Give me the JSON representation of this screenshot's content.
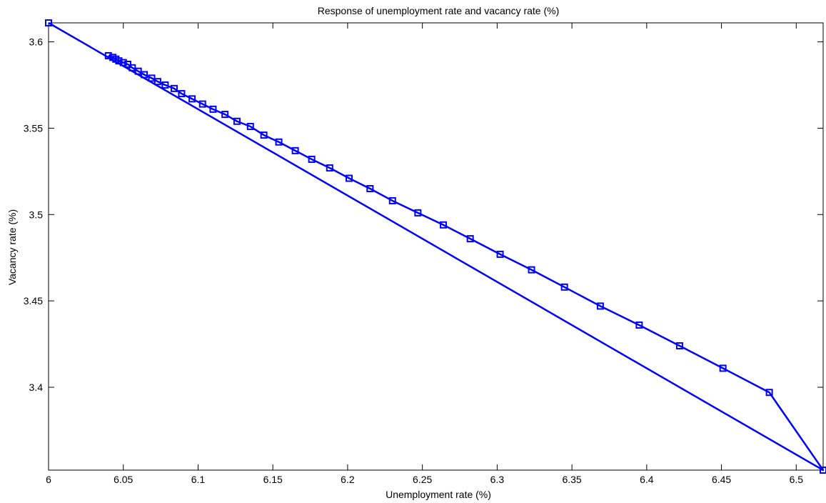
{
  "chart_data": {
    "type": "line",
    "title": "Response of unemployment rate and vacancy rate (%)",
    "xlabel": "Unemployment rate (%)",
    "ylabel": "Vacancy rate (%)",
    "xlim": [
      6.0,
      6.518
    ],
    "ylim": [
      3.352,
      3.611
    ],
    "xticks": [
      6,
      6.05,
      6.1,
      6.15,
      6.2,
      6.25,
      6.3,
      6.35,
      6.4,
      6.45,
      6.5
    ],
    "xtick_labels": [
      "6",
      "6.05",
      "6.1",
      "6.15",
      "6.2",
      "6.25",
      "6.3",
      "6.35",
      "6.4",
      "6.45",
      "6.5"
    ],
    "yticks": [
      3.4,
      3.45,
      3.5,
      3.55,
      3.6
    ],
    "ytick_labels": [
      "3.4",
      "3.45",
      "3.5",
      "3.55",
      "3.6"
    ],
    "grid": false,
    "legend": "none",
    "line_color": "#0000ff",
    "marker": "square",
    "series": [
      {
        "x": [
          6.0,
          6.518,
          6.482,
          6.451,
          6.422,
          6.395,
          6.369,
          6.345,
          6.323,
          6.302,
          6.282,
          6.264,
          6.247,
          6.23,
          6.215,
          6.201,
          6.188,
          6.176,
          6.165,
          6.154,
          6.144,
          6.135,
          6.126,
          6.118,
          6.11,
          6.103,
          6.096,
          6.089,
          6.084,
          6.078,
          6.073,
          6.069,
          6.064,
          6.06,
          6.056,
          6.053,
          6.05,
          6.047,
          6.045,
          6.043,
          6.04
        ],
        "y": [
          3.611,
          3.352,
          3.397,
          3.411,
          3.424,
          3.436,
          3.447,
          3.458,
          3.468,
          3.477,
          3.486,
          3.494,
          3.501,
          3.508,
          3.515,
          3.521,
          3.527,
          3.532,
          3.537,
          3.542,
          3.546,
          3.551,
          3.554,
          3.558,
          3.561,
          3.564,
          3.567,
          3.57,
          3.573,
          3.575,
          3.577,
          3.579,
          3.581,
          3.583,
          3.585,
          3.587,
          3.588,
          3.589,
          3.59,
          3.591,
          3.592
        ]
      }
    ]
  }
}
